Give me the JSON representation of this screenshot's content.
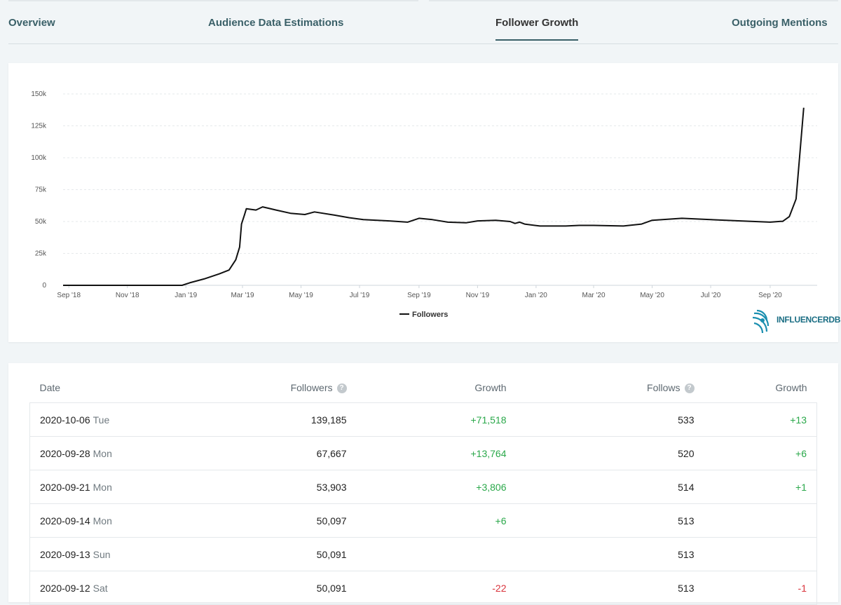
{
  "tabs": [
    {
      "label": "Overview",
      "active": false
    },
    {
      "label": "Audience Data Estimations",
      "active": false
    },
    {
      "label": "Follower Growth",
      "active": true
    },
    {
      "label": "Outgoing Mentions",
      "active": false
    }
  ],
  "chart_data": {
    "type": "line",
    "title": "",
    "xlabel": "",
    "ylabel": "",
    "ylim": [
      0,
      150000
    ],
    "y_ticks": [
      "150k",
      "125k",
      "100k",
      "75k",
      "50k",
      "25k",
      "0"
    ],
    "y_tick_values": [
      150000,
      125000,
      100000,
      75000,
      50000,
      25000,
      0
    ],
    "x_ticks": [
      "Sep '18",
      "Nov '18",
      "Jan '19",
      "Mar '19",
      "May '19",
      "Jul '19",
      "Sep '19",
      "Nov '19",
      "Jan '20",
      "Mar '20",
      "May '20",
      "Jul '20",
      "Sep '20"
    ],
    "x_tick_dates": [
      "2018-09-01",
      "2018-11-01",
      "2019-01-01",
      "2019-03-01",
      "2019-05-01",
      "2019-07-01",
      "2019-09-01",
      "2019-11-01",
      "2020-01-01",
      "2020-03-01",
      "2020-05-01",
      "2020-07-01",
      "2020-09-01"
    ],
    "grid": true,
    "legend": "bottom-center",
    "series": [
      {
        "name": "Followers",
        "color": "#111111",
        "points": [
          [
            "2018-08-26",
            0
          ],
          [
            "2018-10-01",
            0
          ],
          [
            "2018-12-01",
            0
          ],
          [
            "2018-12-28",
            0
          ],
          [
            "2019-01-05",
            2000
          ],
          [
            "2019-01-20",
            5000
          ],
          [
            "2019-02-05",
            9000
          ],
          [
            "2019-02-15",
            12000
          ],
          [
            "2019-02-22",
            20000
          ],
          [
            "2019-02-26",
            30000
          ],
          [
            "2019-02-28",
            48000
          ],
          [
            "2019-03-03",
            55000
          ],
          [
            "2019-03-05",
            60000
          ],
          [
            "2019-03-15",
            59000
          ],
          [
            "2019-03-22",
            61500
          ],
          [
            "2019-04-05",
            59000
          ],
          [
            "2019-04-20",
            56500
          ],
          [
            "2019-05-05",
            55500
          ],
          [
            "2019-05-15",
            57500
          ],
          [
            "2019-06-05",
            55000
          ],
          [
            "2019-06-20",
            53000
          ],
          [
            "2019-07-05",
            51500
          ],
          [
            "2019-08-01",
            50500
          ],
          [
            "2019-08-20",
            49500
          ],
          [
            "2019-09-01",
            52500
          ],
          [
            "2019-09-15",
            51500
          ],
          [
            "2019-10-01",
            49500
          ],
          [
            "2019-10-20",
            49000
          ],
          [
            "2019-11-01",
            50500
          ],
          [
            "2019-11-20",
            51000
          ],
          [
            "2019-12-05",
            50000
          ],
          [
            "2019-12-10",
            48500
          ],
          [
            "2019-12-15",
            49500
          ],
          [
            "2019-12-20",
            48000
          ],
          [
            "2020-01-05",
            46500
          ],
          [
            "2020-02-01",
            46500
          ],
          [
            "2020-02-15",
            47000
          ],
          [
            "2020-03-01",
            47000
          ],
          [
            "2020-04-01",
            46500
          ],
          [
            "2020-04-20",
            48000
          ],
          [
            "2020-05-01",
            51000
          ],
          [
            "2020-06-01",
            52500
          ],
          [
            "2020-07-01",
            51500
          ],
          [
            "2020-08-01",
            50500
          ],
          [
            "2020-09-01",
            49500
          ],
          [
            "2020-09-12",
            50091
          ],
          [
            "2020-09-14",
            50097
          ],
          [
            "2020-09-21",
            53903
          ],
          [
            "2020-09-28",
            67667
          ],
          [
            "2020-10-06",
            139185
          ]
        ]
      }
    ]
  },
  "logo_text": "INFLUENCERDB",
  "table": {
    "headers": [
      "Date",
      "Followers",
      "Growth",
      "Follows",
      "Growth"
    ],
    "rows": [
      {
        "date": "2020-10-06",
        "weekday": "Tue",
        "followers": "139,185",
        "growth": "+71,518",
        "growth_sign": "pos",
        "follows": "533",
        "follows_growth": "+13",
        "follows_growth_sign": "pos"
      },
      {
        "date": "2020-09-28",
        "weekday": "Mon",
        "followers": "67,667",
        "growth": "+13,764",
        "growth_sign": "pos",
        "follows": "520",
        "follows_growth": "+6",
        "follows_growth_sign": "pos"
      },
      {
        "date": "2020-09-21",
        "weekday": "Mon",
        "followers": "53,903",
        "growth": "+3,806",
        "growth_sign": "pos",
        "follows": "514",
        "follows_growth": "+1",
        "follows_growth_sign": "pos"
      },
      {
        "date": "2020-09-14",
        "weekday": "Mon",
        "followers": "50,097",
        "growth": "+6",
        "growth_sign": "pos",
        "follows": "513",
        "follows_growth": "",
        "follows_growth_sign": ""
      },
      {
        "date": "2020-09-13",
        "weekday": "Sun",
        "followers": "50,091",
        "growth": "",
        "growth_sign": "",
        "follows": "513",
        "follows_growth": "",
        "follows_growth_sign": ""
      },
      {
        "date": "2020-09-12",
        "weekday": "Sat",
        "followers": "50,091",
        "growth": "-22",
        "growth_sign": "neg",
        "follows": "513",
        "follows_growth": "-1",
        "follows_growth_sign": "neg"
      }
    ]
  }
}
